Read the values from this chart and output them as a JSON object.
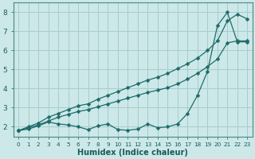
{
  "x": [
    0,
    1,
    2,
    3,
    4,
    5,
    6,
    7,
    8,
    9,
    10,
    11,
    12,
    13,
    14,
    15,
    16,
    17,
    18,
    19,
    20,
    21,
    22,
    23
  ],
  "line_top": [
    1.8,
    2.0,
    2.2,
    2.5,
    2.7,
    2.9,
    3.1,
    3.2,
    3.45,
    3.65,
    3.85,
    4.05,
    4.25,
    4.45,
    4.6,
    4.8,
    5.05,
    5.3,
    5.6,
    6.0,
    6.5,
    7.55,
    7.9,
    7.65
  ],
  "line_mid": [
    1.8,
    1.95,
    2.1,
    2.3,
    2.5,
    2.65,
    2.8,
    2.9,
    3.05,
    3.2,
    3.35,
    3.5,
    3.65,
    3.8,
    3.92,
    4.05,
    4.25,
    4.5,
    4.8,
    5.15,
    5.55,
    6.4,
    6.5,
    6.5
  ],
  "line_bot": [
    1.8,
    1.88,
    2.05,
    2.25,
    2.15,
    2.1,
    2.0,
    1.85,
    2.05,
    2.15,
    1.85,
    1.82,
    1.88,
    2.15,
    1.95,
    2.0,
    2.15,
    2.7,
    3.65,
    4.9,
    7.3,
    8.0,
    6.45,
    6.45
  ],
  "bg_color": "#cce8e8",
  "line_color": "#1f6b6b",
  "grid_color": "#a8cccc",
  "xlabel": "Humidex (Indice chaleur)",
  "xlim": [
    -0.5,
    23.5
  ],
  "ylim": [
    1.5,
    8.5
  ],
  "yticks": [
    2,
    3,
    4,
    5,
    6,
    7,
    8
  ],
  "xticks": [
    0,
    1,
    2,
    3,
    4,
    5,
    6,
    7,
    8,
    9,
    10,
    11,
    12,
    13,
    14,
    15,
    16,
    17,
    18,
    19,
    20,
    21,
    22,
    23
  ]
}
